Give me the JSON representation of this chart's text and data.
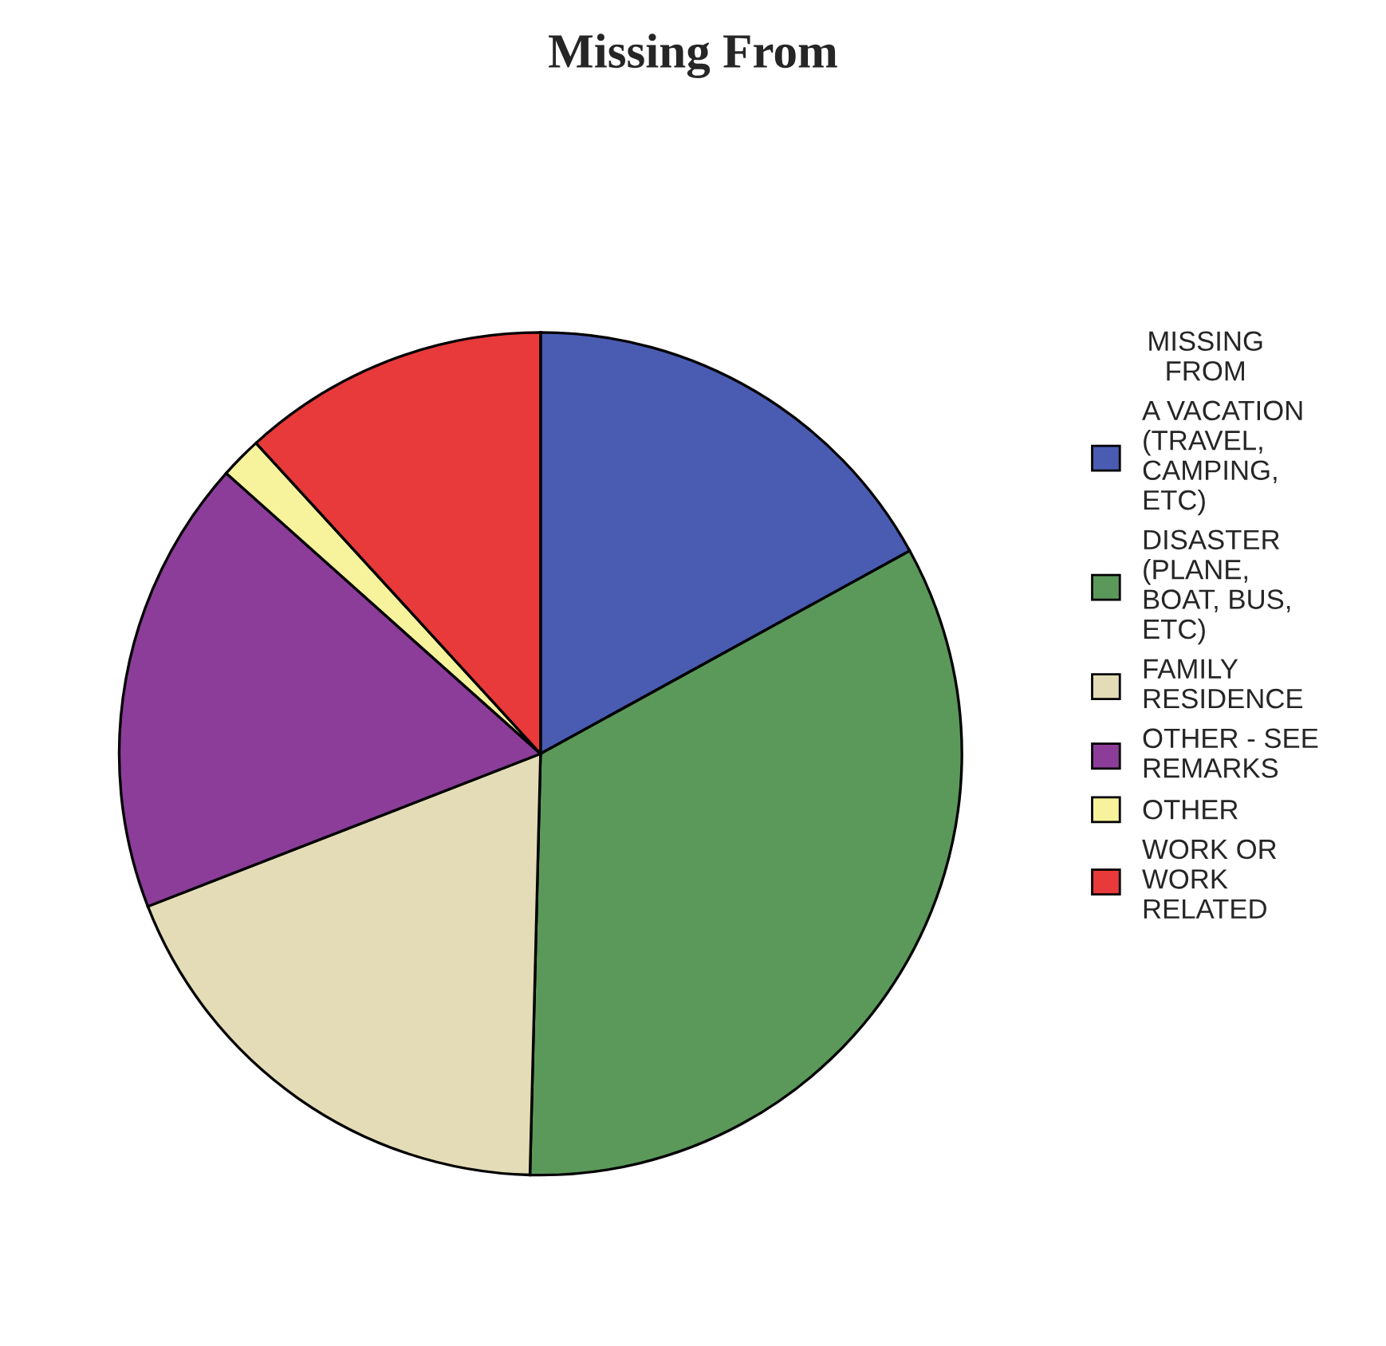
{
  "chart_data": {
    "type": "pie",
    "title": "Missing From",
    "legend_title": "MISSING\nFROM",
    "categories": [
      "A VACATION\n(TRAVEL,\nCAMPING,\nETC)",
      "DISASTER\n(PLANE,\nBOAT, BUS,\nETC)",
      "FAMILY\nRESIDENCE",
      "OTHER - SEE\nREMARKS",
      "OTHER",
      "WORK OR\nWORK\nRELATED"
    ],
    "values": [
      17,
      33.4,
      18.7,
      17.5,
      1.6,
      11.8
    ],
    "colors": [
      "#4a5cb2",
      "#5b995b",
      "#e3dcb6",
      "#8b3d99",
      "#f7f39c",
      "#e83a3a"
    ],
    "legend": "right"
  }
}
